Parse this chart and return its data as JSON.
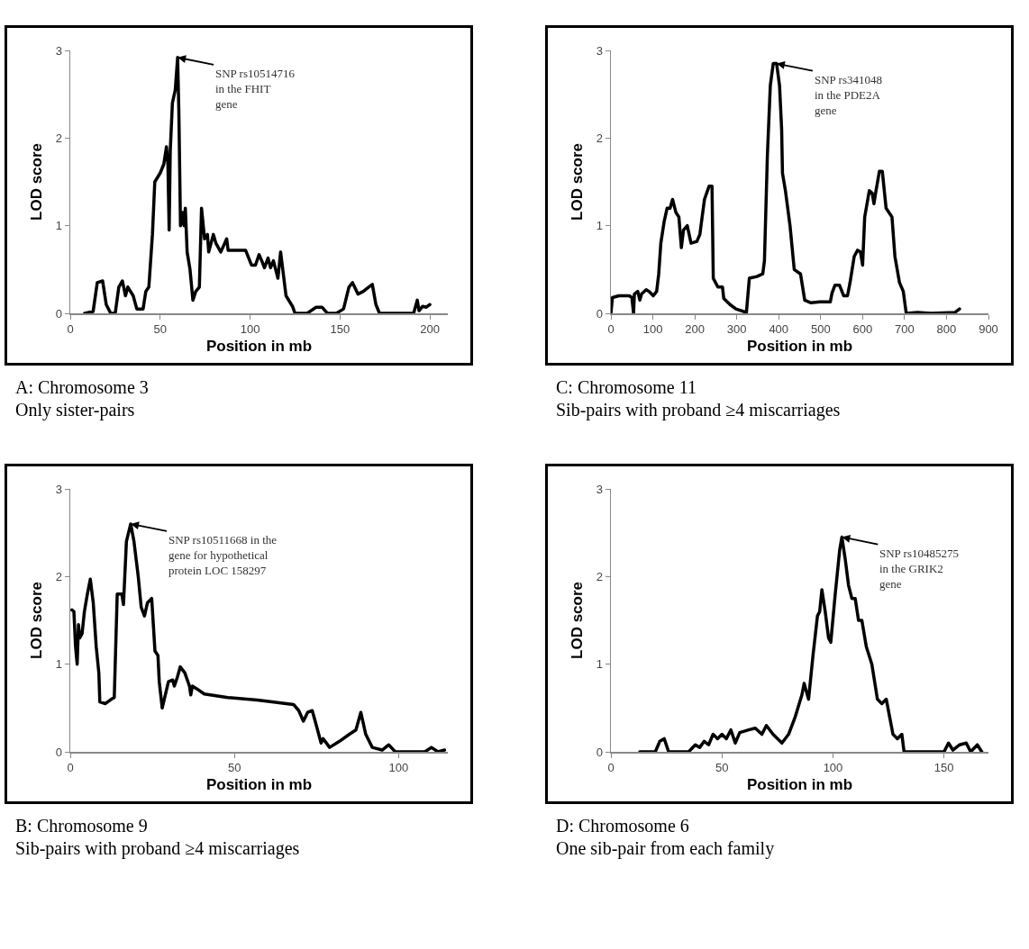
{
  "chart_data": [
    {
      "type": "line",
      "xlabel": "Position in mb",
      "ylabel": "LOD score",
      "xlim": [
        0,
        210
      ],
      "xticks": [
        0,
        50,
        100,
        150,
        200
      ],
      "ylim": [
        0,
        3
      ],
      "yticks": [
        0,
        1,
        2,
        3
      ],
      "grid": false,
      "line_style": "solid",
      "marker": "none",
      "annotations": [
        {
          "text": "SNP rs10514716\nin the FHIT\ngene",
          "x": 59.7,
          "y": 2.92
        },
        "A: Chromosome 3",
        "Only sister-pairs"
      ],
      "series": [
        {
          "color": "#000000",
          "x": [
            8,
            12.7,
            15,
            18,
            20,
            22.5,
            25,
            27,
            29,
            30.7,
            32,
            35,
            37,
            40.5,
            42,
            43.7,
            45.7,
            47,
            50,
            52,
            53.5,
            54.3,
            55,
            55.6,
            56.8,
            58.4,
            59.7,
            60.4,
            61.3,
            62.5,
            63.3,
            64,
            65,
            66.6,
            68.2,
            69.8,
            71.8,
            73,
            74.7,
            76.3,
            77,
            79.6,
            81,
            83.7,
            87,
            87.8,
            97.5,
            100.8,
            103,
            105,
            106.5,
            108,
            110,
            111.4,
            113,
            115.5,
            117,
            118.8,
            120,
            123.6,
            125,
            131.8,
            136.7,
            140,
            143,
            148,
            152,
            155,
            157,
            160,
            163,
            166,
            168,
            170,
            172,
            191,
            193,
            194,
            196,
            198,
            200
          ],
          "values": [
            0,
            0.02,
            0.35,
            0.37,
            0.1,
            0,
            0,
            0.3,
            0.37,
            0.2,
            0.3,
            0.2,
            0.05,
            0.05,
            0.25,
            0.3,
            0.9,
            1.5,
            1.6,
            1.7,
            1.9,
            1.7,
            0.95,
            1.85,
            2.4,
            2.55,
            2.92,
            2.3,
            1,
            1.15,
            1,
            1.2,
            0.7,
            0.5,
            0.15,
            0.25,
            0.3,
            1.2,
            0.85,
            0.9,
            0.7,
            0.9,
            0.8,
            0.7,
            0.85,
            0.72,
            0.72,
            0.55,
            0.55,
            0.67,
            0.6,
            0.52,
            0.63,
            0.52,
            0.6,
            0.4,
            0.7,
            0.4,
            0.2,
            0.08,
            0,
            0,
            0.07,
            0.07,
            0,
            0,
            0.05,
            0.3,
            0.35,
            0.22,
            0.25,
            0.3,
            0.33,
            0.1,
            0,
            0,
            0.15,
            0.03,
            0.08,
            0.07,
            0.1
          ]
        }
      ]
    },
    {
      "type": "line",
      "xlabel": "Position in mb",
      "ylabel": "LOD score",
      "xlim": [
        0,
        900
      ],
      "xticks": [
        0,
        100,
        200,
        300,
        400,
        500,
        600,
        700,
        800,
        900
      ],
      "ylim": [
        0,
        3
      ],
      "yticks": [
        0,
        1,
        2,
        3
      ],
      "grid": false,
      "line_style": "solid",
      "marker": "none",
      "annotations": [
        {
          "text": "SNP rs341048\nin the PDE2A\ngene",
          "x": 395,
          "y": 2.85
        },
        "C: Chromosome 11",
        "Sib-pairs with proband ≥4 miscarriages"
      ],
      "series": [
        {
          "color": "#000000",
          "x": [
            0,
            3.6,
            19,
            44,
            50,
            54,
            56,
            64,
            69,
            73,
            84,
            91,
            101,
            109,
            114,
            119,
            127,
            134,
            141,
            147,
            155,
            162,
            168,
            173,
            182,
            191,
            205,
            212,
            223,
            234,
            241,
            244,
            255,
            266,
            269,
            284,
            298,
            323,
            330,
            348,
            362,
            366,
            373,
            380,
            387,
            395,
            402,
            407,
            409,
            416,
            427,
            437,
            452,
            462,
            477,
            498,
            523,
            527,
            534,
            545,
            555,
            564,
            570,
            580,
            588,
            595,
            600,
            605,
            616,
            623,
            627,
            632,
            640,
            647,
            656,
            670,
            677,
            688,
            697,
            704,
            731,
            763,
            820,
            831
          ],
          "values": [
            0,
            0.18,
            0.2,
            0.2,
            0.18,
            0,
            0.22,
            0.25,
            0.15,
            0.22,
            0.27,
            0.25,
            0.2,
            0.25,
            0.45,
            0.8,
            1.05,
            1.2,
            1.2,
            1.3,
            1.15,
            1.1,
            0.75,
            0.95,
            1,
            0.8,
            0.82,
            0.9,
            1.3,
            1.45,
            1.45,
            0.4,
            0.3,
            0.3,
            0.17,
            0.1,
            0.05,
            0.01,
            0.4,
            0.42,
            0.45,
            0.6,
            1.8,
            2.6,
            2.85,
            2.85,
            2.6,
            2.1,
            1.6,
            1.4,
            1,
            0.5,
            0.45,
            0.15,
            0.12,
            0.13,
            0.13,
            0.23,
            0.32,
            0.32,
            0.2,
            0.2,
            0.35,
            0.65,
            0.72,
            0.7,
            0.55,
            1.1,
            1.4,
            1.37,
            1.25,
            1.4,
            1.62,
            1.62,
            1.2,
            1.1,
            0.65,
            0.35,
            0.25,
            0,
            0.01,
            0,
            0.01,
            0.05
          ]
        }
      ]
    },
    {
      "type": "line",
      "xlabel": "Position in mb",
      "ylabel": "LOD score",
      "xlim": [
        0,
        115
      ],
      "xticks": [
        0,
        50,
        100
      ],
      "ylim": [
        0,
        3
      ],
      "yticks": [
        0,
        1,
        2,
        3
      ],
      "grid": false,
      "line_style": "solid",
      "marker": "none",
      "annotations": [
        {
          "text": "SNP rs10511668 in the\ngene for hypothetical\nprotein LOC 158297",
          "x": 18.4,
          "y": 2.6
        },
        "B: Chromosome 9",
        "Sib-pairs with proband ≥4 miscarriages"
      ],
      "series": [
        {
          "color": "#000000",
          "x": [
            0.5,
            1.1,
            1.6,
            2.1,
            2.5,
            2.9,
            3.6,
            4.3,
            5.2,
            6.1,
            7,
            7.9,
            8.7,
            9,
            10.7,
            12.5,
            13.4,
            14.3,
            15.7,
            16.2,
            17.1,
            18.4,
            19.4,
            20.7,
            21.6,
            22.6,
            23.5,
            24.8,
            25.8,
            26.7,
            27.1,
            28,
            29.9,
            31.2,
            31.7,
            32.6,
            33.5,
            34.9,
            36.3,
            36.7,
            37.2,
            38.5,
            40.8,
            48,
            57,
            68,
            69.6,
            71,
            72.3,
            73.7,
            74.6,
            76.4,
            77,
            79,
            82,
            85,
            87,
            88.5,
            90,
            92,
            95,
            97,
            99,
            108,
            110,
            112,
            114
          ],
          "values": [
            1.62,
            1.6,
            1.2,
            1,
            1.45,
            1.3,
            1.35,
            1.6,
            1.8,
            1.97,
            1.7,
            1.2,
            0.9,
            0.57,
            0.55,
            0.6,
            0.62,
            1.8,
            1.8,
            1.68,
            2.4,
            2.6,
            2.4,
            2,
            1.65,
            1.55,
            1.7,
            1.75,
            1.15,
            1.1,
            0.8,
            0.5,
            0.8,
            0.82,
            0.75,
            0.85,
            0.97,
            0.9,
            0.75,
            0.65,
            0.75,
            0.72,
            0.66,
            0.62,
            0.59,
            0.54,
            0.47,
            0.35,
            0.45,
            0.47,
            0.35,
            0.1,
            0.15,
            0.05,
            0.12,
            0.2,
            0.25,
            0.45,
            0.2,
            0.05,
            0.02,
            0.08,
            0,
            0,
            0.05,
            0,
            0.02
          ]
        }
      ]
    },
    {
      "type": "line",
      "xlabel": "Position in mb",
      "ylabel": "LOD score",
      "xlim": [
        0,
        170
      ],
      "xticks": [
        0,
        50,
        100,
        150
      ],
      "ylim": [
        0,
        3
      ],
      "yticks": [
        0,
        1,
        2,
        3
      ],
      "grid": false,
      "line_style": "solid",
      "marker": "none",
      "annotations": [
        {
          "text": "SNP rs10485275\nin the GRIK2\ngene",
          "x": 104,
          "y": 2.45
        },
        "D: Chromosome 6",
        "One sib-pair from each family"
      ],
      "series": [
        {
          "color": "#000000",
          "x": [
            13,
            20,
            22,
            24,
            26,
            35,
            38,
            40,
            42,
            44,
            46,
            48,
            50,
            52,
            54,
            56,
            58,
            62,
            65,
            68,
            70,
            73,
            77,
            80,
            83,
            86,
            87,
            89,
            91,
            93,
            94,
            95,
            96.5,
            98,
            99,
            101,
            103,
            104,
            105.5,
            107,
            108.5,
            110,
            111.5,
            113,
            115,
            117.5,
            120,
            122,
            124,
            125.5,
            127,
            129,
            131,
            132,
            140,
            150,
            152,
            154,
            157,
            160,
            162,
            165,
            167
          ],
          "values": [
            0,
            0,
            0.12,
            0.15,
            0,
            0,
            0.08,
            0.05,
            0.12,
            0.08,
            0.2,
            0.15,
            0.2,
            0.15,
            0.25,
            0.1,
            0.22,
            0.25,
            0.27,
            0.2,
            0.3,
            0.2,
            0.1,
            0.2,
            0.4,
            0.65,
            0.78,
            0.6,
            1.1,
            1.55,
            1.6,
            1.85,
            1.6,
            1.3,
            1.25,
            1.8,
            2.3,
            2.45,
            2.2,
            1.9,
            1.75,
            1.75,
            1.5,
            1.5,
            1.2,
            1,
            0.6,
            0.55,
            0.6,
            0.4,
            0.2,
            0.15,
            0.2,
            0,
            0,
            0,
            0.1,
            0.02,
            0.08,
            0.1,
            0,
            0.08,
            0
          ]
        }
      ]
    }
  ]
}
